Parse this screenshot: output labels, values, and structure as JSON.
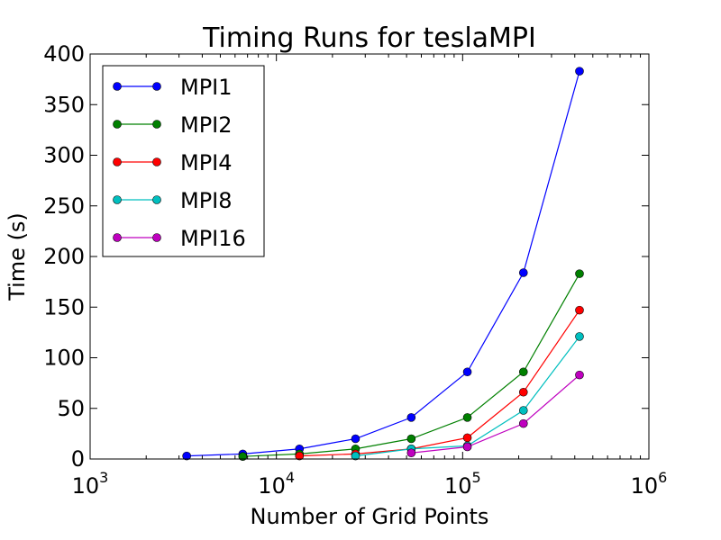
{
  "chart_data": {
    "type": "line",
    "title": "Timing Runs for teslaMPI",
    "xlabel": "Number of Grid Points",
    "ylabel": "Time (s)",
    "xscale": "log",
    "xlim": [
      1000,
      1000000
    ],
    "ylim": [
      0,
      400
    ],
    "xticks": [
      {
        "base": "10",
        "exp": "3",
        "value": 1000
      },
      {
        "base": "10",
        "exp": "4",
        "value": 10000
      },
      {
        "base": "10",
        "exp": "5",
        "value": 100000
      },
      {
        "base": "10",
        "exp": "6",
        "value": 1000000
      }
    ],
    "yticks": [
      0,
      50,
      100,
      150,
      200,
      250,
      300,
      350,
      400
    ],
    "legend_position": "upper-left",
    "grid": false,
    "series": [
      {
        "name": "MPI1",
        "color": "#0000ff",
        "x": [
          3300,
          6600,
          13300,
          26600,
          53000,
          106000,
          212000,
          424000
        ],
        "y": [
          3,
          5,
          10,
          20,
          41,
          86,
          184,
          383
        ]
      },
      {
        "name": "MPI2",
        "color": "#008000",
        "x": [
          6600,
          13300,
          26600,
          53000,
          106000,
          212000,
          424000
        ],
        "y": [
          2.5,
          5,
          10,
          20,
          41,
          86,
          183
        ]
      },
      {
        "name": "MPI4",
        "color": "#ff0000",
        "x": [
          13300,
          26600,
          53000,
          106000,
          212000,
          424000
        ],
        "y": [
          3,
          5,
          10,
          21,
          66,
          147
        ]
      },
      {
        "name": "MPI8",
        "color": "#00bfbf",
        "x": [
          26600,
          53000,
          106000,
          212000,
          424000
        ],
        "y": [
          3,
          10,
          13,
          48,
          121
        ]
      },
      {
        "name": "MPI16",
        "color": "#bf00bf",
        "x": [
          53000,
          106000,
          212000,
          424000
        ],
        "y": [
          6,
          12,
          35,
          83
        ]
      }
    ]
  }
}
